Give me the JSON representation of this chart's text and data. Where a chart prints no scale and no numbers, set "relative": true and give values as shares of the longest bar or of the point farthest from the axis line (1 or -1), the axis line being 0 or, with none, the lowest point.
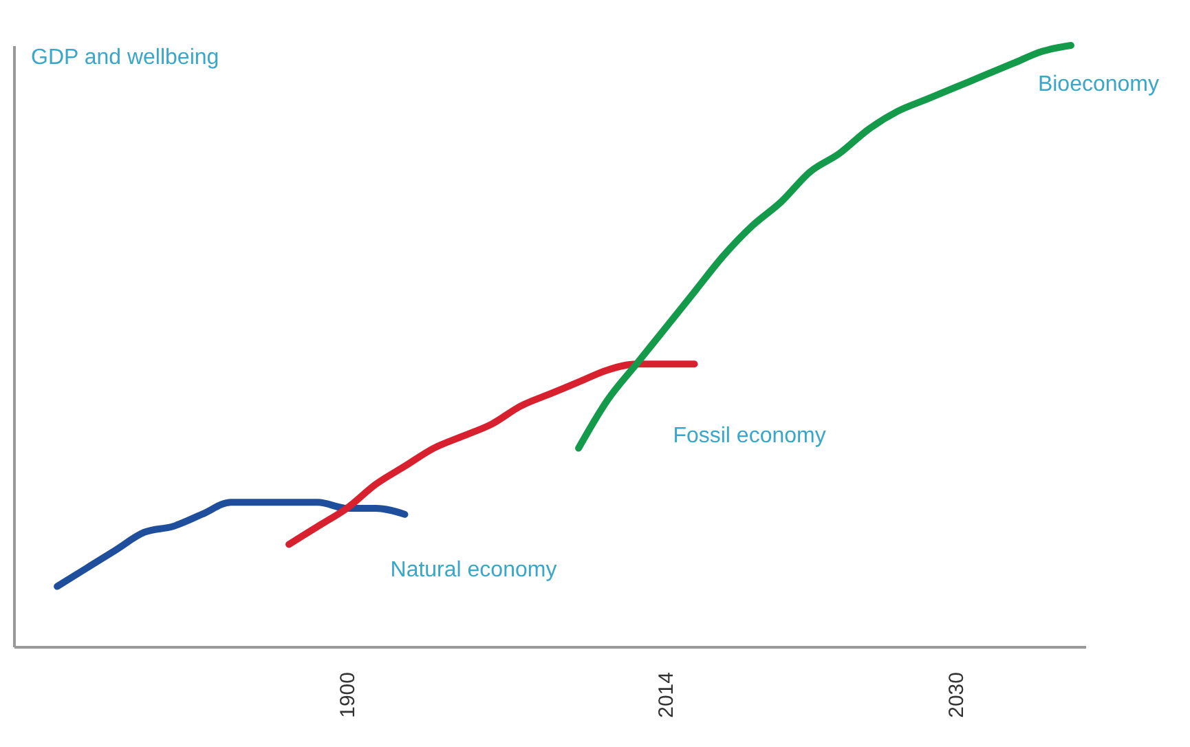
{
  "chart_data": {
    "type": "line",
    "ylabel": "GDP and wellbeing",
    "relative": true,
    "grid": false,
    "legend": false,
    "marker": "none",
    "line_style": "solid",
    "categories": [
      null,
      null,
      null,
      null,
      null,
      null,
      null,
      null,
      null,
      null,
      null,
      "1900",
      null,
      null,
      null,
      null,
      null,
      null,
      null,
      null,
      null,
      null,
      "2014",
      null,
      null,
      null,
      null,
      null,
      null,
      null,
      null,
      null,
      "2030",
      null,
      null,
      null,
      null
    ],
    "series": [
      {
        "name": "Natural economy",
        "color": "#1f4e9c",
        "values": [
          null,
          0.1,
          0.13,
          0.16,
          0.19,
          0.2,
          0.22,
          0.24,
          0.24,
          0.24,
          0.24,
          0.23,
          0.23,
          0.22,
          null,
          null,
          null,
          null,
          null,
          null,
          null,
          null,
          null,
          null,
          null,
          null,
          null,
          null,
          null,
          null,
          null,
          null,
          null,
          null,
          null,
          null,
          null
        ]
      },
      {
        "name": "Fossil economy",
        "color": "#d9202f",
        "values": [
          null,
          null,
          null,
          null,
          null,
          null,
          null,
          null,
          null,
          0.17,
          0.2,
          0.23,
          0.27,
          0.3,
          0.33,
          0.35,
          0.37,
          0.4,
          0.42,
          0.44,
          0.46,
          0.47,
          0.47,
          0.47,
          null,
          null,
          null,
          null,
          null,
          null,
          null,
          null,
          null,
          null,
          null,
          null,
          null
        ]
      },
      {
        "name": "Bioeconomy",
        "color": "#139a4a",
        "values": [
          null,
          null,
          null,
          null,
          null,
          null,
          null,
          null,
          null,
          null,
          null,
          null,
          null,
          null,
          null,
          null,
          null,
          null,
          null,
          0.33,
          0.41,
          0.47,
          0.53,
          0.59,
          0.65,
          0.7,
          0.74,
          0.79,
          0.82,
          0.86,
          0.89,
          0.91,
          0.93,
          0.95,
          0.97,
          0.99,
          1
        ]
      }
    ]
  }
}
